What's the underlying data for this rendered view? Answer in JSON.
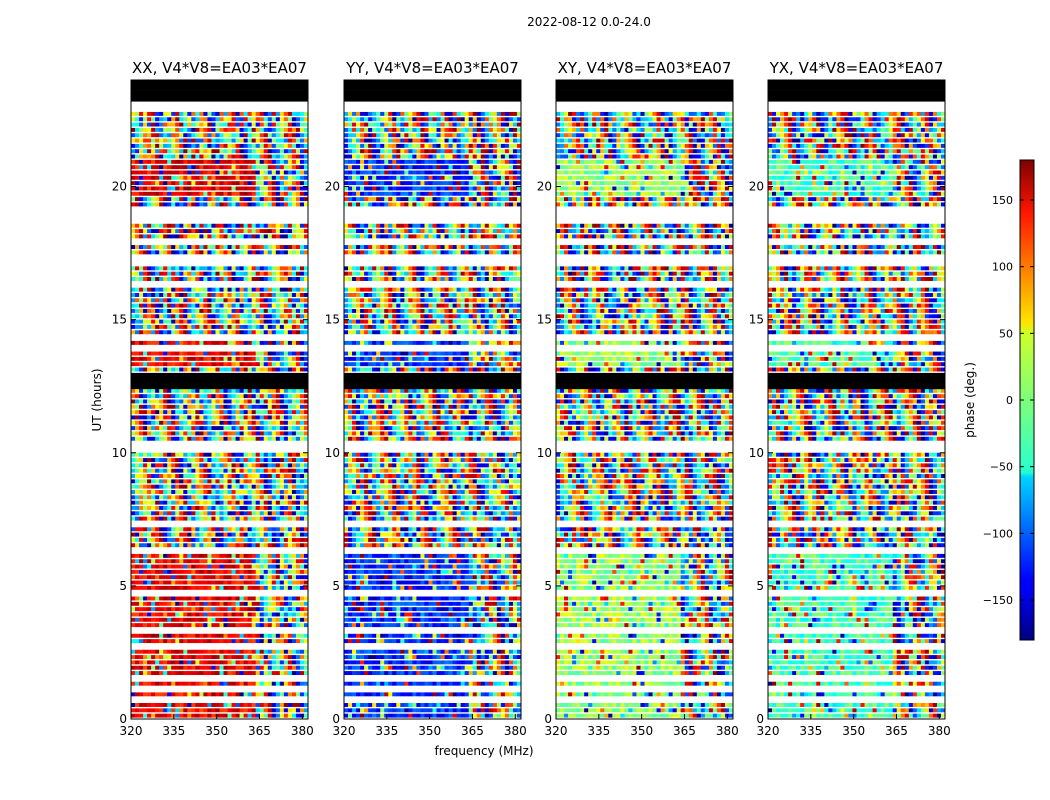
{
  "suptitle": "2022-08-12 0.0-24.0",
  "chart_data": {
    "type": "heatmap",
    "xlabel": "frequency (MHz)",
    "ylabel": "UT (hours)",
    "xlim": [
      320,
      382
    ],
    "ylim": [
      0,
      24
    ],
    "xticks": [
      320,
      335,
      350,
      365,
      380
    ],
    "yticks": [
      0,
      5,
      10,
      15,
      20
    ],
    "colorbar": {
      "label": "phase (deg.)",
      "range": [
        -180,
        180
      ],
      "ticks": [
        150,
        100,
        50,
        0,
        -50,
        -100,
        -150
      ],
      "tick_labels": [
        "150",
        "100",
        "50",
        "0",
        "−50",
        "−100",
        "−150"
      ],
      "colormap": "jet"
    },
    "panels": [
      {
        "title": "XX, V4*V8=EA03*EA07",
        "baseline_phase_deg": 140
      },
      {
        "title": "YY, V4*V8=EA03*EA07",
        "baseline_phase_deg": -120
      },
      {
        "title": "XY, V4*V8=EA03*EA07",
        "baseline_phase_deg": 10
      },
      {
        "title": "YX, V4*V8=EA03*EA07",
        "baseline_phase_deg": -20
      }
    ],
    "flagged_ut_hours": [
      [
        0.35,
        0.45
      ],
      [
        0.65,
        0.72
      ],
      [
        1.1,
        1.2
      ],
      [
        1.45,
        1.6
      ],
      [
        1.95,
        2.02
      ],
      [
        2.7,
        2.85
      ],
      [
        3.3,
        3.4
      ],
      [
        3.6,
        3.7
      ],
      [
        4.7,
        4.78
      ],
      [
        5.75,
        5.85
      ],
      [
        6.3,
        6.4
      ],
      [
        7.3,
        7.38
      ],
      [
        8.2,
        8.3
      ],
      [
        8.95,
        9.05
      ],
      [
        9.6,
        9.7
      ],
      [
        10.05,
        10.35
      ],
      [
        11.4,
        11.48
      ],
      [
        12.4,
        12.5
      ],
      [
        13.9,
        14.0
      ],
      [
        14.3,
        14.4
      ],
      [
        15.4,
        15.5
      ],
      [
        16.2,
        16.3
      ],
      [
        17.1,
        17.5
      ],
      [
        17.9,
        17.98
      ],
      [
        18.6,
        19.2
      ],
      [
        20.4,
        20.5
      ],
      [
        21.4,
        21.5
      ],
      [
        21.95,
        22.05
      ],
      [
        22.55,
        22.65
      ],
      [
        22.9,
        23.3
      ]
    ],
    "no_data_ut_hours": [
      [
        12.45,
        12.95
      ],
      [
        23.3,
        24.0
      ]
    ]
  }
}
